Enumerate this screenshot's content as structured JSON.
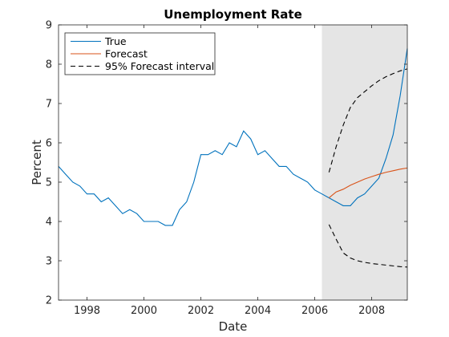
{
  "chart_data": {
    "type": "line",
    "title": "Unemployment Rate",
    "xlabel": "Date",
    "ylabel": "Percent",
    "xlim": [
      1997.0,
      2009.25
    ],
    "ylim": [
      2,
      9
    ],
    "x_ticks": [
      1998,
      2000,
      2002,
      2004,
      2006,
      2008
    ],
    "y_ticks": [
      2,
      3,
      4,
      5,
      6,
      7,
      8,
      9
    ],
    "x_tick_labels": [
      "1998",
      "2000",
      "2002",
      "2004",
      "2006",
      "2008"
    ],
    "y_tick_labels": [
      "2",
      "3",
      "4",
      "5",
      "6",
      "7",
      "8",
      "9"
    ],
    "grid": false,
    "legend_position": "top-left",
    "shaded_region": {
      "x_start": 2006.25,
      "x_end": 2009.25,
      "color": "#e5e5e5"
    },
    "series": [
      {
        "name": "True",
        "color": "#0072bd",
        "style": "solid",
        "x": [
          1997.0,
          1997.25,
          1997.5,
          1997.75,
          1998.0,
          1998.25,
          1998.5,
          1998.75,
          1999.0,
          1999.25,
          1999.5,
          1999.75,
          2000.0,
          2000.25,
          2000.5,
          2000.75,
          2001.0,
          2001.25,
          2001.5,
          2001.75,
          2002.0,
          2002.25,
          2002.5,
          2002.75,
          2003.0,
          2003.25,
          2003.5,
          2003.75,
          2004.0,
          2004.25,
          2004.5,
          2004.75,
          2005.0,
          2005.25,
          2005.5,
          2005.75,
          2006.0,
          2006.25,
          2006.5,
          2006.75,
          2007.0,
          2007.25,
          2007.5,
          2007.75,
          2008.0,
          2008.25,
          2008.5,
          2008.75,
          2009.0,
          2009.25
        ],
        "y": [
          5.4,
          5.2,
          5.0,
          4.9,
          4.7,
          4.7,
          4.5,
          4.6,
          4.4,
          4.2,
          4.3,
          4.2,
          4.0,
          4.0,
          4.0,
          3.9,
          3.9,
          4.3,
          4.5,
          5.0,
          5.7,
          5.7,
          5.8,
          5.7,
          6.0,
          5.9,
          6.3,
          6.1,
          5.7,
          5.8,
          5.6,
          5.4,
          5.4,
          5.2,
          5.1,
          5.0,
          4.8,
          4.7,
          4.6,
          4.5,
          4.4,
          4.4,
          4.6,
          4.7,
          4.9,
          5.1,
          5.6,
          6.2,
          7.2,
          8.4
        ]
      },
      {
        "name": "Forecast",
        "color": "#d95319",
        "style": "solid",
        "x": [
          2006.5,
          2006.75,
          2007.0,
          2007.25,
          2007.5,
          2007.75,
          2008.0,
          2008.25,
          2008.5,
          2008.75,
          2009.0,
          2009.25
        ],
        "y": [
          4.6,
          4.75,
          4.82,
          4.92,
          5.0,
          5.08,
          5.14,
          5.2,
          5.25,
          5.29,
          5.33,
          5.36
        ]
      },
      {
        "name": "95% Forecast interval",
        "color": "#000000",
        "style": "dashed",
        "x": [
          2006.5,
          2006.75,
          2007.0,
          2007.25,
          2007.5,
          2007.75,
          2008.0,
          2008.25,
          2008.5,
          2008.75,
          2009.0,
          2009.25
        ],
        "y": [
          5.25,
          5.9,
          6.45,
          6.9,
          7.15,
          7.3,
          7.45,
          7.58,
          7.68,
          7.76,
          7.83,
          7.88
        ]
      },
      {
        "name": "",
        "color": "#000000",
        "style": "dashed",
        "x": [
          2006.5,
          2006.75,
          2007.0,
          2007.25,
          2007.5,
          2007.75,
          2008.0,
          2008.25,
          2008.5,
          2008.75,
          2009.0,
          2009.25
        ],
        "y": [
          3.92,
          3.55,
          3.2,
          3.07,
          3.0,
          2.96,
          2.93,
          2.91,
          2.89,
          2.87,
          2.85,
          2.84
        ]
      }
    ]
  }
}
